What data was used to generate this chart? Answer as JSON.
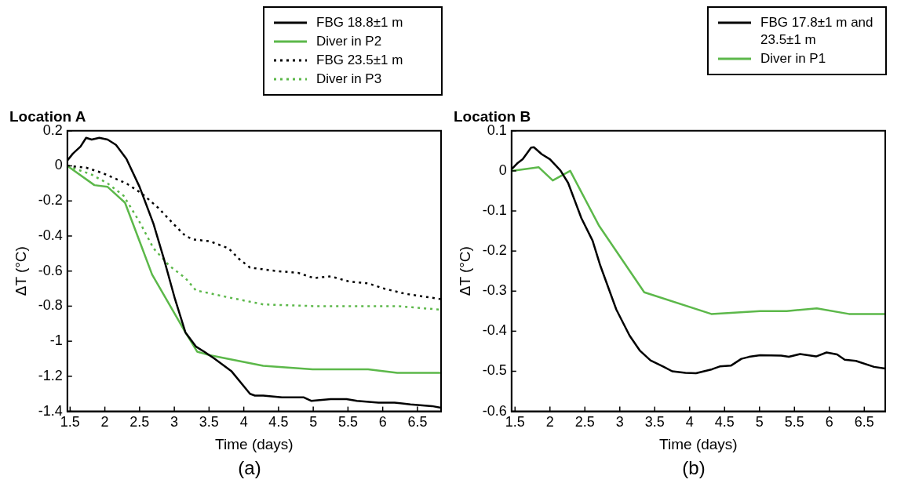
{
  "chart_data": [
    {
      "type": "line",
      "title": "Location A",
      "xlabel": "Time (days)",
      "ylabel": "ΔT (°C)",
      "xlim": [
        1.46,
        6.84
      ],
      "ylim": [
        -1.4,
        0.2
      ],
      "xticks": [
        1.5,
        2,
        2.5,
        3,
        3.5,
        4,
        4.5,
        5,
        5.5,
        6,
        6.5
      ],
      "yticks": [
        0.2,
        0,
        -0.2,
        -0.4,
        -0.6,
        -0.8,
        -1,
        -1.2,
        -1.4
      ],
      "grid": false,
      "legend": "top right",
      "annotations": [
        "(a)"
      ],
      "series": [
        {
          "name": "FBG 18.8±1 m",
          "color": "#000000",
          "line_style": "solid",
          "x": [
            1.46,
            1.54,
            1.65,
            1.73,
            1.81,
            1.92,
            2.04,
            2.16,
            2.31,
            2.5,
            2.7,
            2.85,
            3.01,
            3.16,
            3.31,
            3.43,
            3.58,
            3.82,
            4.09,
            4.16,
            4.28,
            4.55,
            4.86,
            4.97,
            5.25,
            5.48,
            5.63,
            5.94,
            6.17,
            6.4,
            6.71,
            6.84
          ],
          "values": [
            0.03,
            0.07,
            0.11,
            0.16,
            0.15,
            0.16,
            0.15,
            0.12,
            0.04,
            -0.12,
            -0.33,
            -0.53,
            -0.76,
            -0.95,
            -1.03,
            -1.06,
            -1.1,
            -1.17,
            -1.3,
            -1.31,
            -1.31,
            -1.32,
            -1.32,
            -1.34,
            -1.33,
            -1.33,
            -1.34,
            -1.35,
            -1.35,
            -1.36,
            -1.37,
            -1.38
          ]
        },
        {
          "name": "Diver in P2",
          "color": "#5cb84a",
          "line_style": "solid",
          "x": [
            1.46,
            1.85,
            2.04,
            2.29,
            2.5,
            2.68,
            3.16,
            3.33,
            3.51,
            4.28,
            4.99,
            5.4,
            5.79,
            6.21,
            6.84
          ],
          "values": [
            0,
            -0.11,
            -0.12,
            -0.21,
            -0.43,
            -0.62,
            -0.95,
            -1.06,
            -1.08,
            -1.14,
            -1.16,
            -1.16,
            -1.16,
            -1.18,
            -1.18
          ]
        },
        {
          "name": "FBG 23.5±1 m",
          "color": "#000000",
          "line_style": "dotted",
          "x": [
            1.46,
            1.73,
            1.96,
            2.31,
            2.54,
            2.77,
            3.01,
            3.16,
            3.28,
            3.51,
            3.78,
            3.93,
            4.09,
            4.47,
            4.78,
            5.01,
            5.25,
            5.52,
            5.79,
            6.02,
            6.33,
            6.84
          ],
          "values": [
            0,
            -0.01,
            -0.04,
            -0.1,
            -0.16,
            -0.24,
            -0.34,
            -0.4,
            -0.42,
            -0.43,
            -0.47,
            -0.53,
            -0.58,
            -0.6,
            -0.61,
            -0.64,
            -0.63,
            -0.66,
            -0.67,
            -0.7,
            -0.73,
            -0.76
          ]
        },
        {
          "name": "Diver in P3",
          "color": "#5cb84a",
          "line_style": "dotted",
          "x": [
            1.46,
            1.81,
            2.04,
            2.27,
            2.5,
            2.7,
            2.93,
            3.16,
            3.31,
            3.43,
            3.78,
            4.28,
            5.01,
            5.63,
            6.21,
            6.84
          ],
          "values": [
            0,
            -0.05,
            -0.1,
            -0.17,
            -0.32,
            -0.47,
            -0.57,
            -0.64,
            -0.71,
            -0.72,
            -0.75,
            -0.79,
            -0.8,
            -0.8,
            -0.8,
            -0.82
          ]
        }
      ]
    },
    {
      "type": "line",
      "title": "Location B",
      "xlabel": "Time (days)",
      "ylabel": "ΔT (°C)",
      "xlim": [
        1.45,
        6.8
      ],
      "ylim": [
        -0.6,
        0.1
      ],
      "xticks": [
        1.5,
        2,
        2.5,
        3,
        3.5,
        4,
        4.5,
        5,
        5.5,
        6,
        6.5
      ],
      "yticks": [
        0.1,
        0,
        -0.1,
        -0.2,
        -0.3,
        -0.4,
        -0.5,
        -0.6
      ],
      "grid": false,
      "legend": "top right",
      "annotations": [
        "(b)"
      ],
      "series": [
        {
          "name": "FBG 17.8±1 m and 23.5±1 m",
          "color": "#000000",
          "line_style": "solid",
          "x": [
            1.45,
            1.54,
            1.61,
            1.73,
            1.77,
            1.88,
            2,
            2.15,
            2.26,
            2.45,
            2.61,
            2.72,
            2.95,
            3.14,
            3.29,
            3.44,
            3.63,
            3.75,
            3.94,
            4.09,
            4.32,
            4.43,
            4.59,
            4.74,
            4.85,
            5.01,
            5.31,
            5.42,
            5.58,
            5.81,
            5.96,
            6.11,
            6.22,
            6.38,
            6.64,
            6.8
          ],
          "values": [
            0.004,
            0.02,
            0.029,
            0.058,
            0.059,
            0.042,
            0.029,
            0.001,
            -0.03,
            -0.118,
            -0.174,
            -0.236,
            -0.346,
            -0.411,
            -0.449,
            -0.473,
            -0.489,
            -0.5,
            -0.504,
            -0.505,
            -0.495,
            -0.488,
            -0.486,
            -0.469,
            -0.464,
            -0.46,
            -0.461,
            -0.464,
            -0.457,
            -0.463,
            -0.453,
            -0.458,
            -0.471,
            -0.474,
            -0.489,
            -0.493
          ]
        },
        {
          "name": "Diver in P1",
          "color": "#5cb84a",
          "line_style": "solid",
          "x": [
            1.45,
            1.84,
            2.04,
            2.29,
            2.7,
            3.35,
            4.31,
            5.01,
            5.39,
            5.82,
            6.28,
            6.8
          ],
          "values": [
            0,
            0.009,
            -0.024,
            0,
            -0.136,
            -0.303,
            -0.357,
            -0.35,
            -0.35,
            -0.343,
            -0.357,
            -0.357
          ]
        }
      ]
    }
  ]
}
